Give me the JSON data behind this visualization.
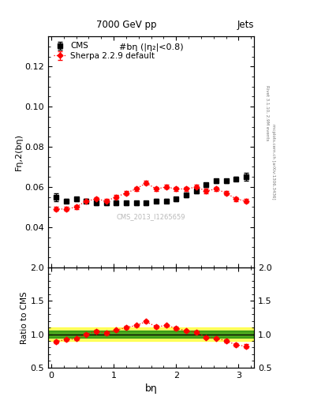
{
  "title_left": "7000 GeV pp",
  "title_right": "Jets",
  "right_label_top": "Rivet 3.1.10, 2.9M events",
  "right_label_bot": "mcplots.cern.ch [arXiv:1306.3436]",
  "plot_title": "#bη (|η₂|<0.8)",
  "watermark": "CMS_2013_I1265659",
  "ylabel_main": "Fη,2(bη)",
  "ylabel_ratio": "Ratio to CMS",
  "xlabel": "bη",
  "ylim_main": [
    0.02,
    0.135
  ],
  "ylim_ratio": [
    0.5,
    2.0
  ],
  "yticks_main": [
    0.04,
    0.06,
    0.08,
    0.1,
    0.12
  ],
  "yticks_ratio": [
    0.5,
    1.0,
    1.5,
    2.0
  ],
  "xlim": [
    -0.05,
    3.25
  ],
  "cms_x": [
    0.08,
    0.24,
    0.4,
    0.56,
    0.72,
    0.88,
    1.04,
    1.2,
    1.36,
    1.52,
    1.68,
    1.84,
    2.0,
    2.16,
    2.32,
    2.48,
    2.64,
    2.8,
    2.96,
    3.12
  ],
  "cms_y": [
    0.055,
    0.053,
    0.054,
    0.053,
    0.052,
    0.052,
    0.052,
    0.052,
    0.052,
    0.052,
    0.053,
    0.053,
    0.054,
    0.056,
    0.058,
    0.061,
    0.063,
    0.063,
    0.064,
    0.065
  ],
  "cms_yerr": [
    0.002,
    0.001,
    0.001,
    0.001,
    0.001,
    0.001,
    0.001,
    0.001,
    0.001,
    0.001,
    0.001,
    0.001,
    0.001,
    0.001,
    0.001,
    0.001,
    0.001,
    0.001,
    0.001,
    0.002
  ],
  "sherpa_x": [
    0.08,
    0.24,
    0.4,
    0.56,
    0.72,
    0.88,
    1.04,
    1.2,
    1.36,
    1.52,
    1.68,
    1.84,
    2.0,
    2.16,
    2.32,
    2.48,
    2.64,
    2.8,
    2.96,
    3.12
  ],
  "sherpa_y": [
    0.049,
    0.049,
    0.05,
    0.053,
    0.054,
    0.053,
    0.055,
    0.057,
    0.059,
    0.062,
    0.059,
    0.06,
    0.059,
    0.059,
    0.06,
    0.058,
    0.059,
    0.057,
    0.054,
    0.053
  ],
  "sherpa_yerr": [
    0.001,
    0.001,
    0.001,
    0.001,
    0.001,
    0.001,
    0.001,
    0.001,
    0.001,
    0.001,
    0.001,
    0.001,
    0.001,
    0.001,
    0.001,
    0.001,
    0.001,
    0.001,
    0.001,
    0.001
  ],
  "ratio_y": [
    0.89,
    0.92,
    0.93,
    1.0,
    1.04,
    1.02,
    1.06,
    1.1,
    1.13,
    1.19,
    1.11,
    1.13,
    1.09,
    1.05,
    1.03,
    0.95,
    0.94,
    0.9,
    0.84,
    0.82
  ],
  "ratio_yerr": [
    0.02,
    0.02,
    0.02,
    0.02,
    0.02,
    0.02,
    0.02,
    0.02,
    0.02,
    0.02,
    0.02,
    0.02,
    0.02,
    0.02,
    0.02,
    0.02,
    0.02,
    0.02,
    0.02,
    0.03
  ],
  "band_green_inner": 0.05,
  "band_yellow_outer": 0.1,
  "cms_color": "black",
  "sherpa_color": "red",
  "cms_marker": "s",
  "sherpa_marker": "D",
  "cms_label": "CMS",
  "sherpa_label": "Sherpa 2.2.9 default"
}
